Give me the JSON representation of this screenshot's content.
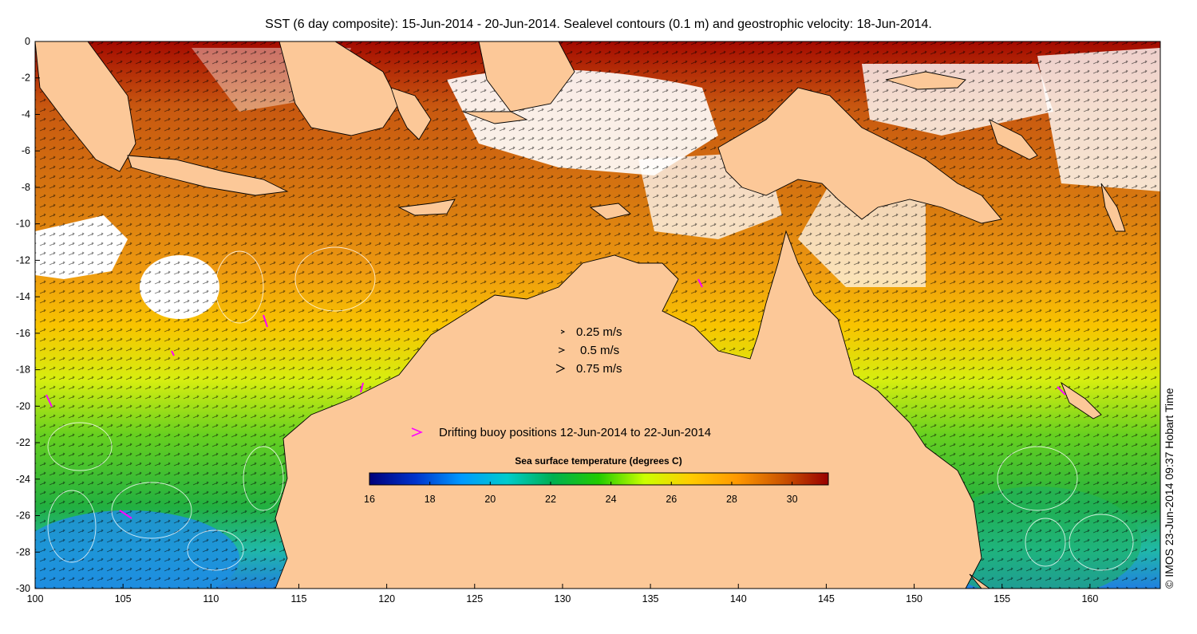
{
  "title": "SST (6 day composite): 15-Jun-2014 - 20-Jun-2014. Sealevel contours (0.1 m) and geostrophic velocity: 18-Jun-2014.",
  "axes": {
    "x_ticks": [
      "100",
      "105",
      "110",
      "115",
      "120",
      "125",
      "130",
      "135",
      "140",
      "145",
      "150",
      "155",
      "160"
    ],
    "y_ticks": [
      "0",
      "-2",
      "-4",
      "-6",
      "-8",
      "-10",
      "-12",
      "-14",
      "-16",
      "-18",
      "-20",
      "-22",
      "-24",
      "-26",
      "-28",
      "-30"
    ],
    "lon_range": [
      100,
      164
    ],
    "lat_range": [
      -30,
      0
    ]
  },
  "velocity_legend": [
    {
      "label": "0.25 m/s",
      "speed": 0.25
    },
    {
      "label": "0.5 m/s",
      "speed": 0.5
    },
    {
      "label": "0.75 m/s",
      "speed": 0.75
    }
  ],
  "buoy_legend": {
    "label": "Drifting buoy positions 12-Jun-2014 to 22-Jun-2014",
    "color": "#ff00ff"
  },
  "colorbar": {
    "title": "Sea surface temperature (degrees C)",
    "ticks": [
      "16",
      "18",
      "20",
      "22",
      "24",
      "26",
      "28",
      "30"
    ],
    "range": [
      16,
      31.2
    ]
  },
  "credit": "© IMOS 23-Jun-2014 09:37 Hobart Time",
  "colors": {
    "land": "#fcc898",
    "cloud": "#ffffff",
    "buoy": "#ff00ff",
    "colormap": [
      "#00007a",
      "#0033cc",
      "#0099ff",
      "#00cccc",
      "#00b050",
      "#22cc00",
      "#ccff00",
      "#ffcc00",
      "#ff9900",
      "#cc5500",
      "#990000"
    ]
  }
}
